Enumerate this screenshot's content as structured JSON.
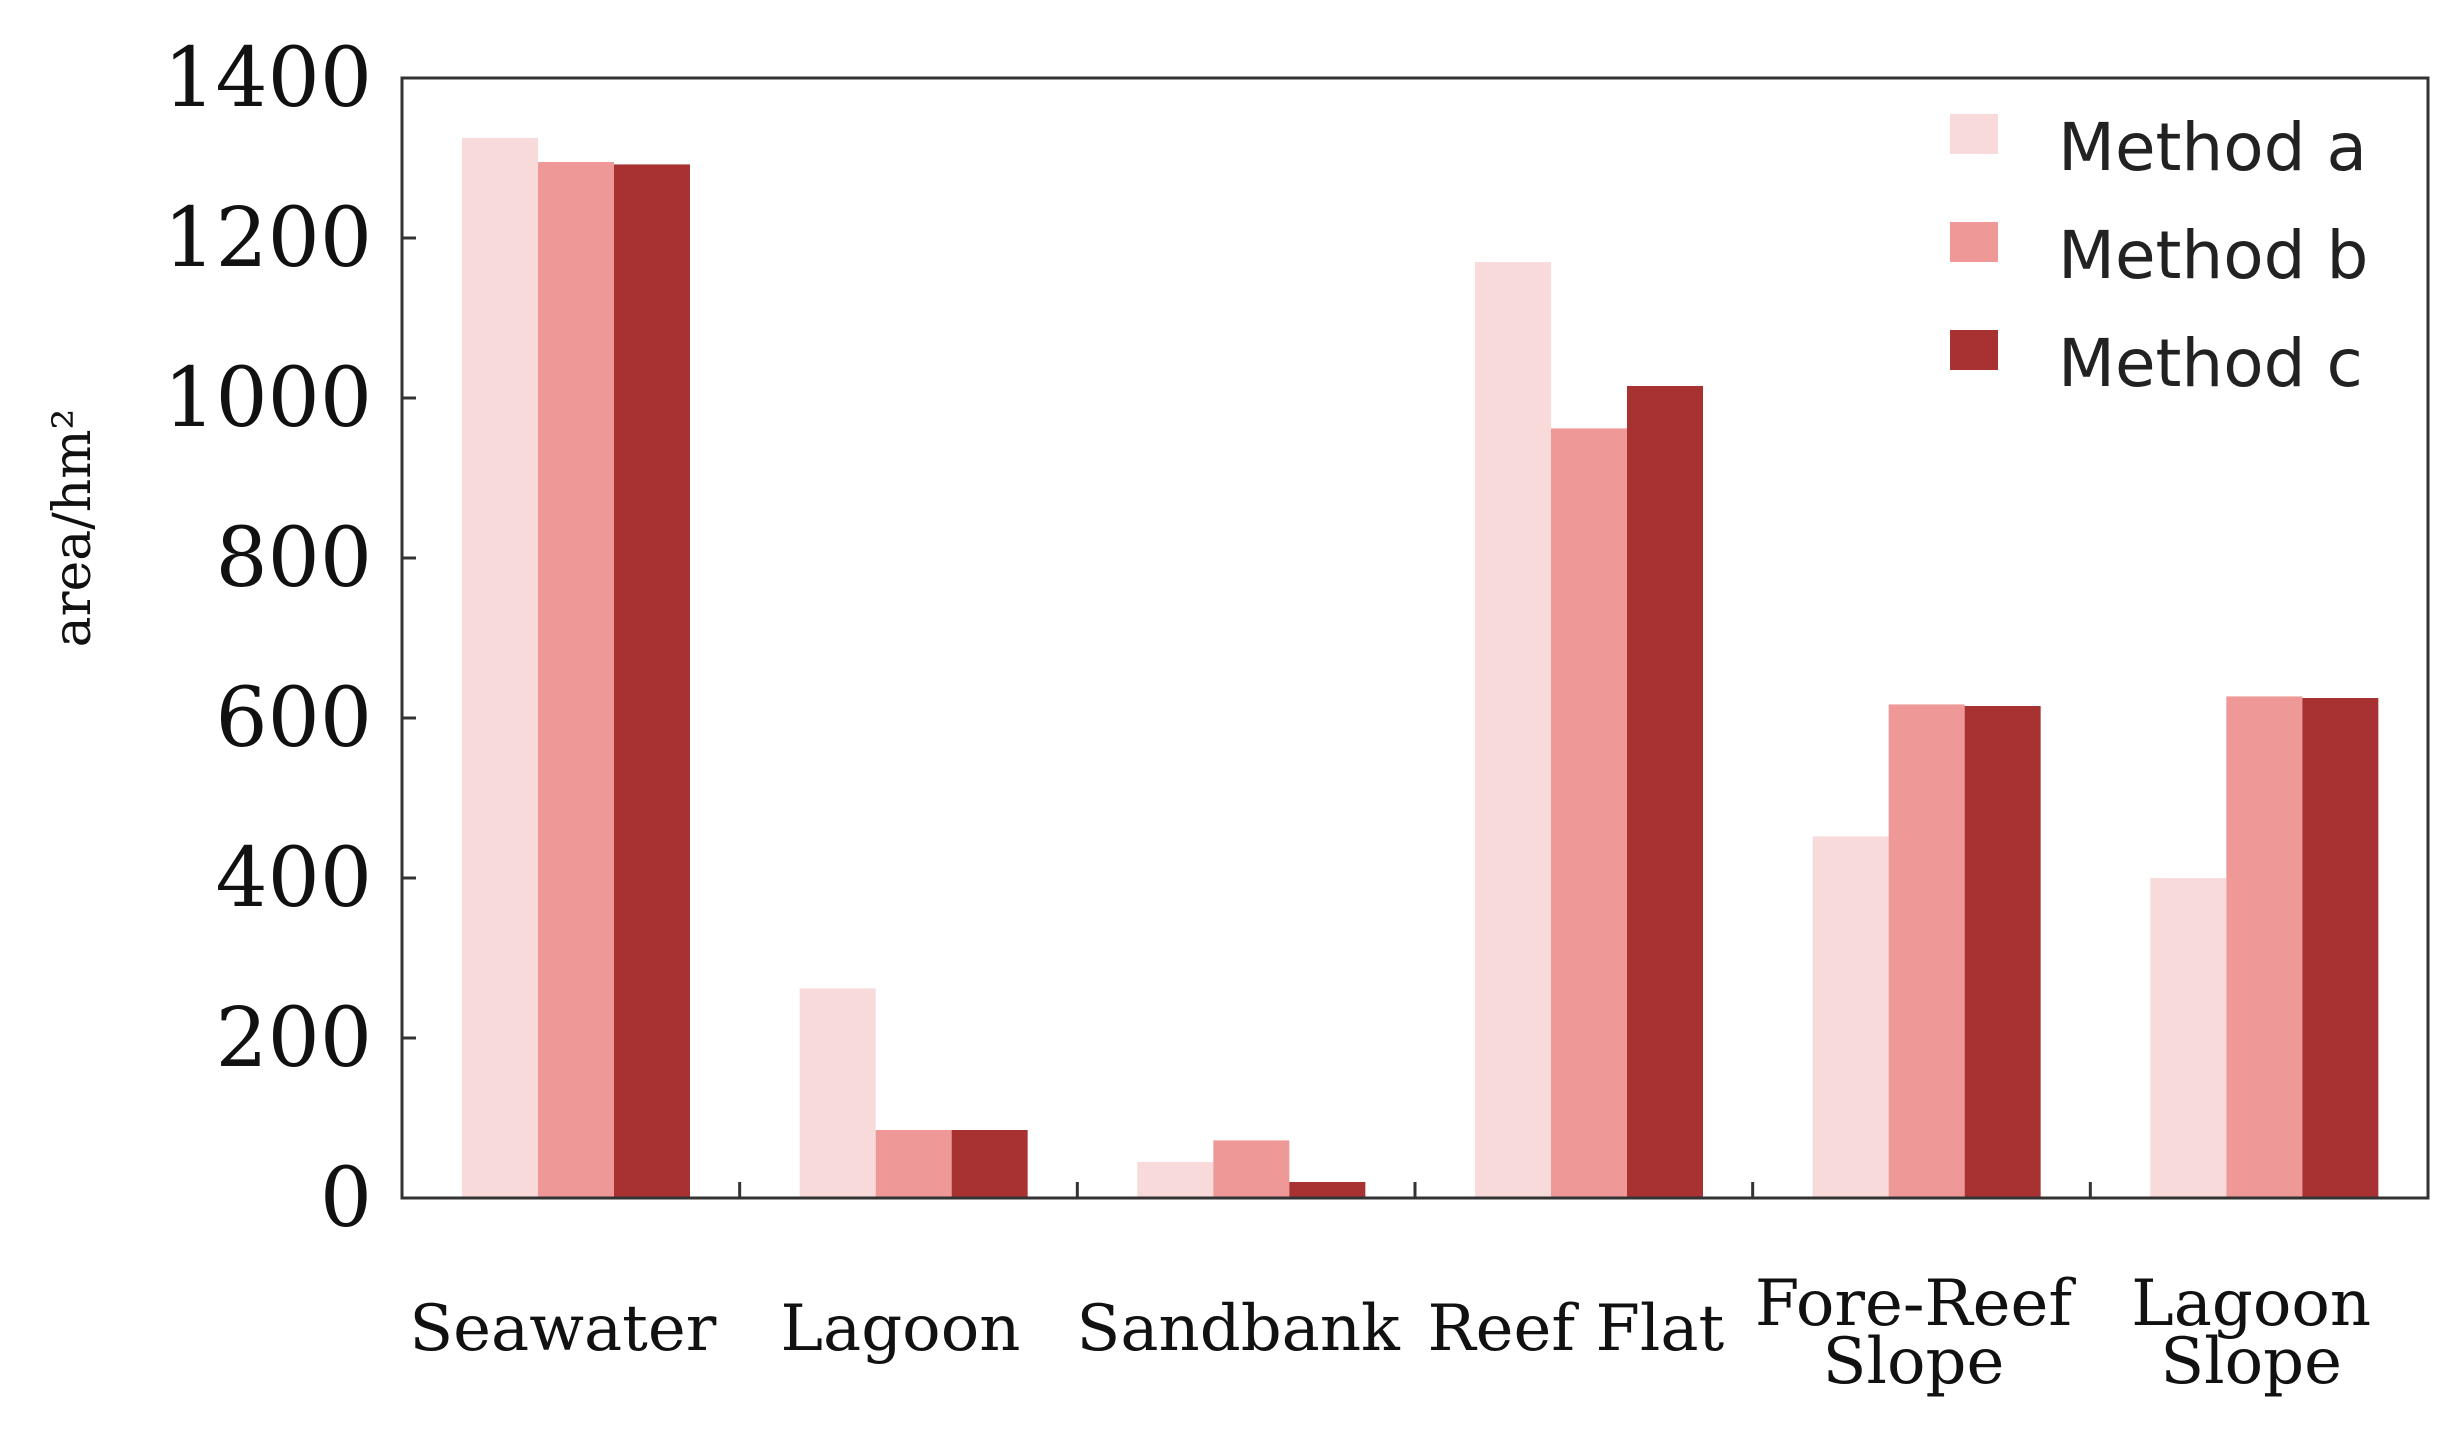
{
  "chart_data": {
    "type": "bar",
    "title": "",
    "xlabel": "",
    "ylabel": "area/hm²",
    "ylim": [
      0,
      1400
    ],
    "yticks": [
      0,
      200,
      400,
      600,
      800,
      1000,
      1200,
      1400
    ],
    "categories": [
      [
        "Seawater"
      ],
      [
        "Lagoon"
      ],
      [
        "Sandbank"
      ],
      [
        "Reef Flat"
      ],
      [
        "Fore-Reef",
        "Slope"
      ],
      [
        "Lagoon",
        "Slope"
      ]
    ],
    "series": [
      {
        "name": "Method a",
        "color": "#f9dada",
        "values": [
          1325,
          262,
          45,
          1170,
          452,
          400
        ]
      },
      {
        "name": "Method b",
        "color": "#ee9898",
        "values": [
          1295,
          85,
          72,
          962,
          617,
          627
        ]
      },
      {
        "name": "Method c",
        "color": "#a83232",
        "values": [
          1292,
          85,
          20,
          1015,
          615,
          625
        ]
      }
    ],
    "legend_position": "top-right",
    "grid": false
  }
}
